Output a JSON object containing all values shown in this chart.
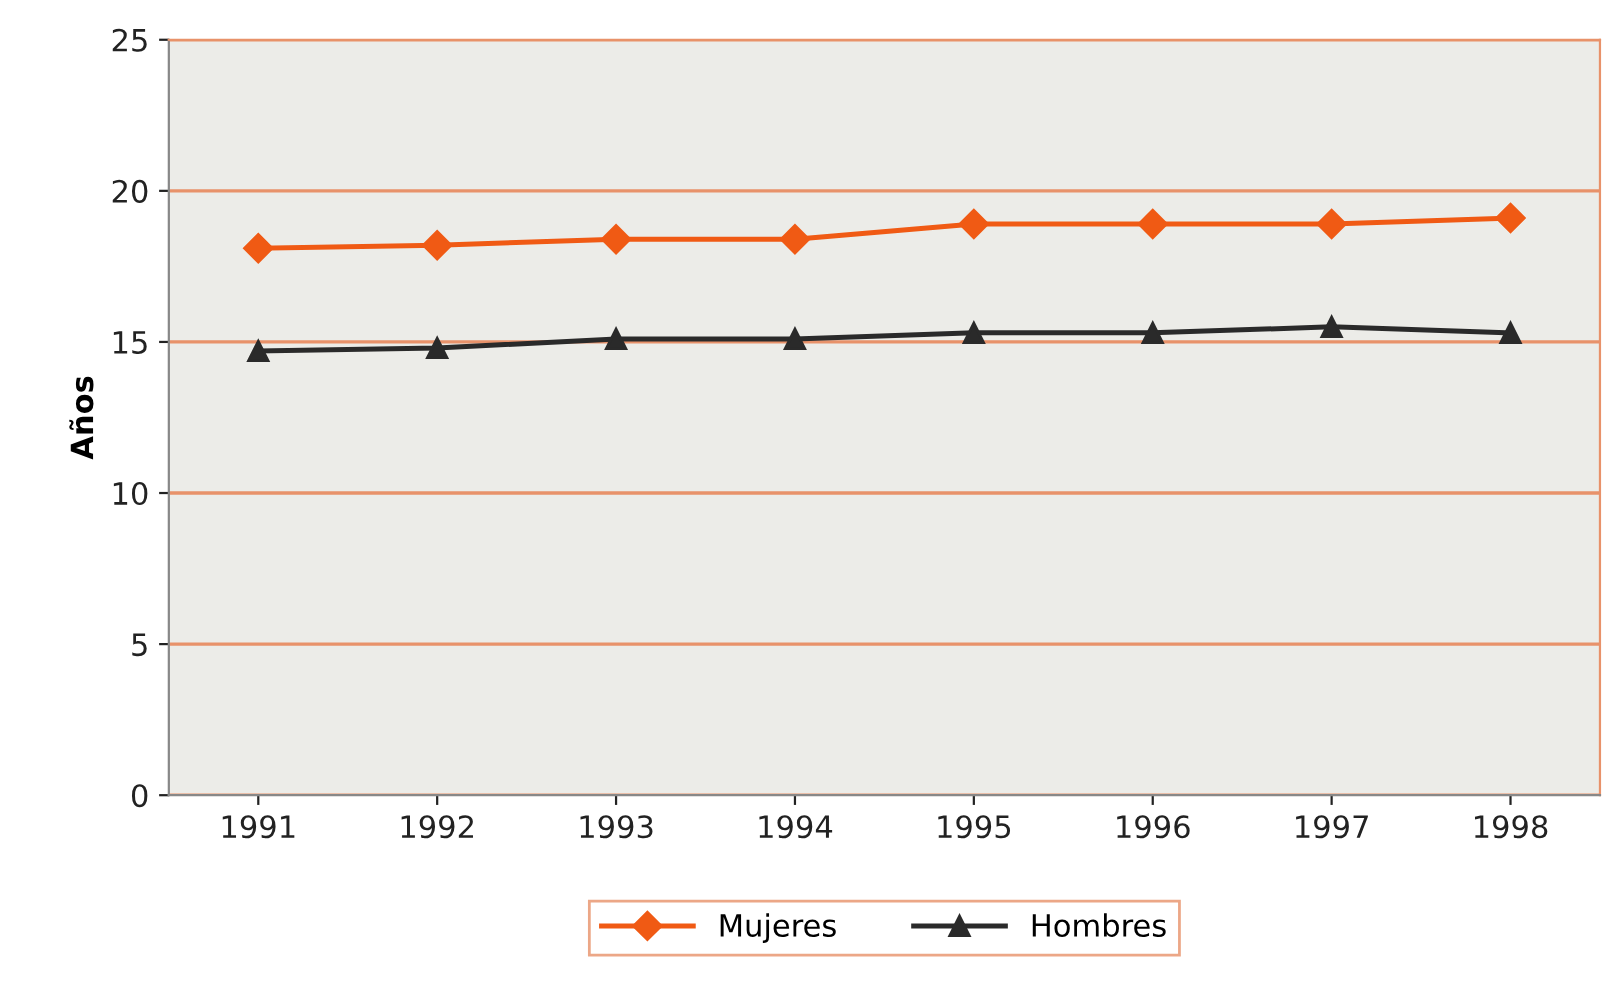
{
  "chart_data": {
    "type": "line",
    "ylabel": "Años",
    "categories": [
      "1991",
      "1992",
      "1993",
      "1994",
      "1995",
      "1996",
      "1997",
      "1998"
    ],
    "series": [
      {
        "name": "Mujeres",
        "color": "#f05a14",
        "marker": "diamond",
        "values": [
          18.1,
          18.2,
          18.4,
          18.4,
          18.9,
          18.9,
          18.9,
          19.1
        ]
      },
      {
        "name": "Hombres",
        "color": "#2a2a2a",
        "marker": "triangle",
        "values": [
          14.7,
          14.8,
          15.1,
          15.1,
          15.3,
          15.3,
          15.5,
          15.3
        ]
      }
    ],
    "ylim": [
      0,
      25
    ],
    "yticks": [
      0,
      5,
      10,
      15,
      20,
      25
    ],
    "grid": "y",
    "legend": "bottom"
  }
}
